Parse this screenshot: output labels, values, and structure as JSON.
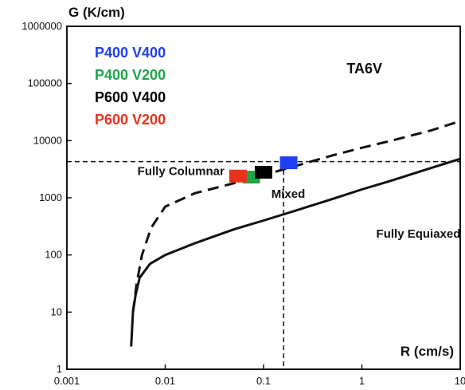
{
  "chart_data": {
    "type": "line",
    "title": "",
    "xlabel": "R (cm/s)",
    "ylabel": "G (K/cm)",
    "x_scale": "log",
    "y_scale": "log",
    "xlim": [
      0.001,
      10
    ],
    "ylim": [
      1,
      1000000
    ],
    "x_ticks": [
      "0.001",
      "0.01",
      "0.1",
      "1",
      "10"
    ],
    "y_ticks": [
      "1",
      "10",
      "100",
      "1000",
      "10000",
      "100000",
      "1000000"
    ],
    "grid": false,
    "legend_position": "top-left",
    "series": [
      {
        "name": "",
        "style": "dashed",
        "color": "#111111",
        "points": [
          [
            0.0047,
            10
          ],
          [
            0.0051,
            30
          ],
          [
            0.0058,
            100
          ],
          [
            0.0072,
            300
          ],
          [
            0.01,
            700
          ],
          [
            0.02,
            1200
          ],
          [
            0.05,
            1800
          ],
          [
            0.1,
            2500
          ],
          [
            0.2,
            3500
          ],
          [
            0.5,
            5500
          ],
          [
            1,
            7500
          ],
          [
            2,
            10000
          ],
          [
            5,
            15000
          ],
          [
            10,
            22000
          ]
        ]
      },
      {
        "name": "",
        "style": "solid",
        "color": "#111111",
        "points": [
          [
            0.0045,
            2.5
          ],
          [
            0.0047,
            10
          ],
          [
            0.005,
            20
          ],
          [
            0.0055,
            40
          ],
          [
            0.007,
            70
          ],
          [
            0.01,
            100
          ],
          [
            0.02,
            160
          ],
          [
            0.05,
            280
          ],
          [
            0.1,
            400
          ],
          [
            0.2,
            580
          ],
          [
            0.5,
            950
          ],
          [
            1,
            1400
          ],
          [
            2,
            2000
          ],
          [
            5,
            3300
          ],
          [
            10,
            4800
          ]
        ]
      }
    ],
    "reference_lines": [
      {
        "orientation": "horizontal",
        "y": 4300,
        "style": "dashed"
      },
      {
        "orientation": "vertical",
        "x": 0.16,
        "style": "dashed"
      }
    ],
    "markers": [
      {
        "name": "P400 V400",
        "color": "#1f3ff2",
        "x": 0.18,
        "y": 4100
      },
      {
        "name": "P400 V200",
        "color": "#1aa64a",
        "x": 0.075,
        "y": 2300
      },
      {
        "name": "P600 V400",
        "color": "#000000",
        "x": 0.1,
        "y": 2800
      },
      {
        "name": "P600 V200",
        "color": "#e8321c",
        "x": 0.055,
        "y": 2400
      }
    ],
    "annotations": [
      {
        "text": "TA6V",
        "x": 0.7,
        "y": 150000,
        "size": "large"
      },
      {
        "text": "Fully Columnar",
        "x": 0.04,
        "y": 2500,
        "size": "normal"
      },
      {
        "text": "Mixed",
        "x": 0.12,
        "y": 1000,
        "size": "normal"
      },
      {
        "text": "Fully Equiaxed",
        "x": 1.4,
        "y": 200,
        "size": "normal"
      }
    ]
  }
}
